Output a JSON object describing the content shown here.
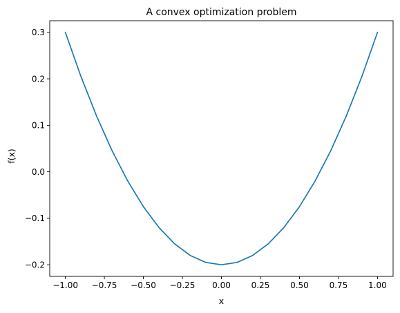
{
  "chart_data": {
    "type": "line",
    "title": "A convex optimization problem",
    "xlabel": "x",
    "ylabel": "f(x)",
    "xlim": [
      -1.1,
      1.1
    ],
    "ylim": [
      -0.225,
      0.325
    ],
    "xticks": [
      -1.0,
      -0.75,
      -0.5,
      -0.25,
      0.0,
      0.25,
      0.5,
      0.75,
      1.0
    ],
    "xtick_labels": [
      "−1.00",
      "−0.75",
      "−0.50",
      "−0.25",
      "0.00",
      "0.25",
      "0.50",
      "0.75",
      "1.00"
    ],
    "yticks": [
      -0.2,
      -0.1,
      0.0,
      0.1,
      0.2,
      0.3
    ],
    "ytick_labels": [
      "−0.2",
      "−0.1",
      "0.0",
      "0.1",
      "0.2",
      "0.3"
    ],
    "grid": false,
    "series": [
      {
        "color": "#1f77b4",
        "x": [
          -1.0,
          -0.9,
          -0.8,
          -0.7,
          -0.6,
          -0.5,
          -0.4,
          -0.3,
          -0.2,
          -0.1,
          0.0,
          0.1,
          0.2,
          0.3,
          0.4,
          0.5,
          0.6,
          0.7,
          0.8,
          0.9,
          1.0
        ],
        "y": [
          0.3,
          0.205,
          0.12,
          0.045,
          -0.02,
          -0.075,
          -0.12,
          -0.155,
          -0.18,
          -0.195,
          -0.2,
          -0.195,
          -0.18,
          -0.155,
          -0.12,
          -0.075,
          -0.02,
          0.045,
          0.12,
          0.205,
          0.3
        ]
      }
    ]
  }
}
